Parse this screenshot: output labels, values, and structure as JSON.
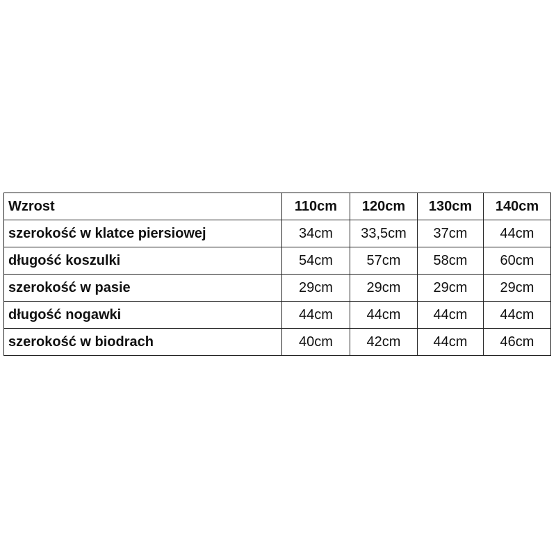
{
  "table": {
    "header": [
      "Wzrost",
      "110cm",
      "120cm",
      "130cm",
      "140cm"
    ],
    "rows": [
      [
        "szerokość w klatce piersiowej",
        "34cm",
        "33,5cm",
        "37cm",
        "44cm"
      ],
      [
        "długość koszulki",
        "54cm",
        "57cm",
        "58cm",
        "60cm"
      ],
      [
        "szerokość w pasie",
        "29cm",
        "29cm",
        "29cm",
        "29cm"
      ],
      [
        "długość nogawki",
        "44cm",
        "44cm",
        "44cm",
        "44cm"
      ],
      [
        "szerokość w biodrach",
        "40cm",
        "42cm",
        "44cm",
        "46cm"
      ]
    ]
  }
}
